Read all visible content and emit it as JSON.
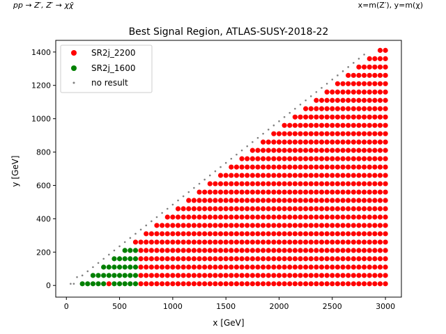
{
  "corner_left": "pp → Z′, Z′ → χχ̄",
  "corner_right": "x=m(Z′), y=m(χ)",
  "chart_data": {
    "type": "scatter",
    "title": "Best Signal Region, ATLAS-SUSY-2018-22",
    "xlabel": "x [GeV]",
    "ylabel": "y [GeV]",
    "xlim": [
      -100,
      3150
    ],
    "ylim": [
      -70,
      1470
    ],
    "xticks": [
      0,
      500,
      1000,
      1500,
      2000,
      2500,
      3000
    ],
    "yticks": [
      0,
      200,
      400,
      600,
      800,
      1000,
      1200,
      1400
    ],
    "legend_position": "top-left",
    "series": [
      {
        "name": "SR2j_2200",
        "color": "#ff0000"
      },
      {
        "name": "SR2j_1600",
        "color": "#008000"
      },
      {
        "name": "no result",
        "color": "#808080"
      }
    ],
    "grid_rule": {
      "x_start": 150,
      "x_step": 50,
      "x_end": 3000,
      "y_start": 10,
      "y_step": 50,
      "max_y_fraction_of_x": 0.5,
      "green_region": {
        "x_max": 650,
        "y_max": 210,
        "x_lt_300_at_y_10": false
      },
      "red_exceptions": [
        {
          "x": 400,
          "y": 10
        }
      ],
      "no_result_diagonal": "y ≈ x/2"
    }
  }
}
